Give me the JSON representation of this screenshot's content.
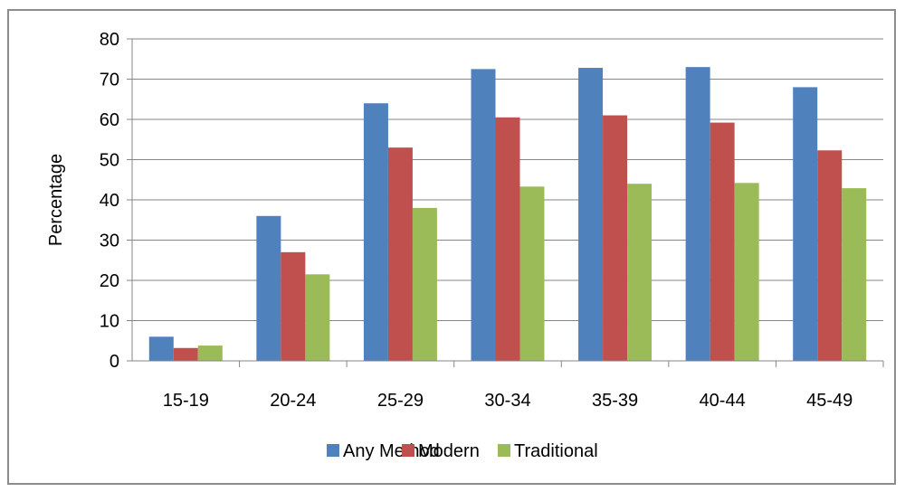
{
  "chart_data": {
    "type": "bar",
    "title": "",
    "xlabel": "",
    "ylabel": "Percentage",
    "ylim": [
      0,
      80
    ],
    "yticks": [
      0,
      10,
      20,
      30,
      40,
      50,
      60,
      70,
      80
    ],
    "grid": true,
    "legend_position": "bottom",
    "categories": [
      "15-19",
      "20-24",
      "25-29",
      "30-34",
      "35-39",
      "40-44",
      "45-49"
    ],
    "series": [
      {
        "name": "Any Method",
        "color": "#4f81bd",
        "values": [
          6,
          36,
          64,
          72.5,
          72.8,
          73,
          68
        ]
      },
      {
        "name": "Modern",
        "color": "#c0504d",
        "values": [
          3.2,
          27,
          53,
          60.5,
          61,
          59.2,
          52.3
        ]
      },
      {
        "name": "Traditional",
        "color": "#9bbb59",
        "values": [
          3.8,
          21.5,
          38,
          43.3,
          44,
          44.2,
          42.9
        ]
      }
    ]
  }
}
